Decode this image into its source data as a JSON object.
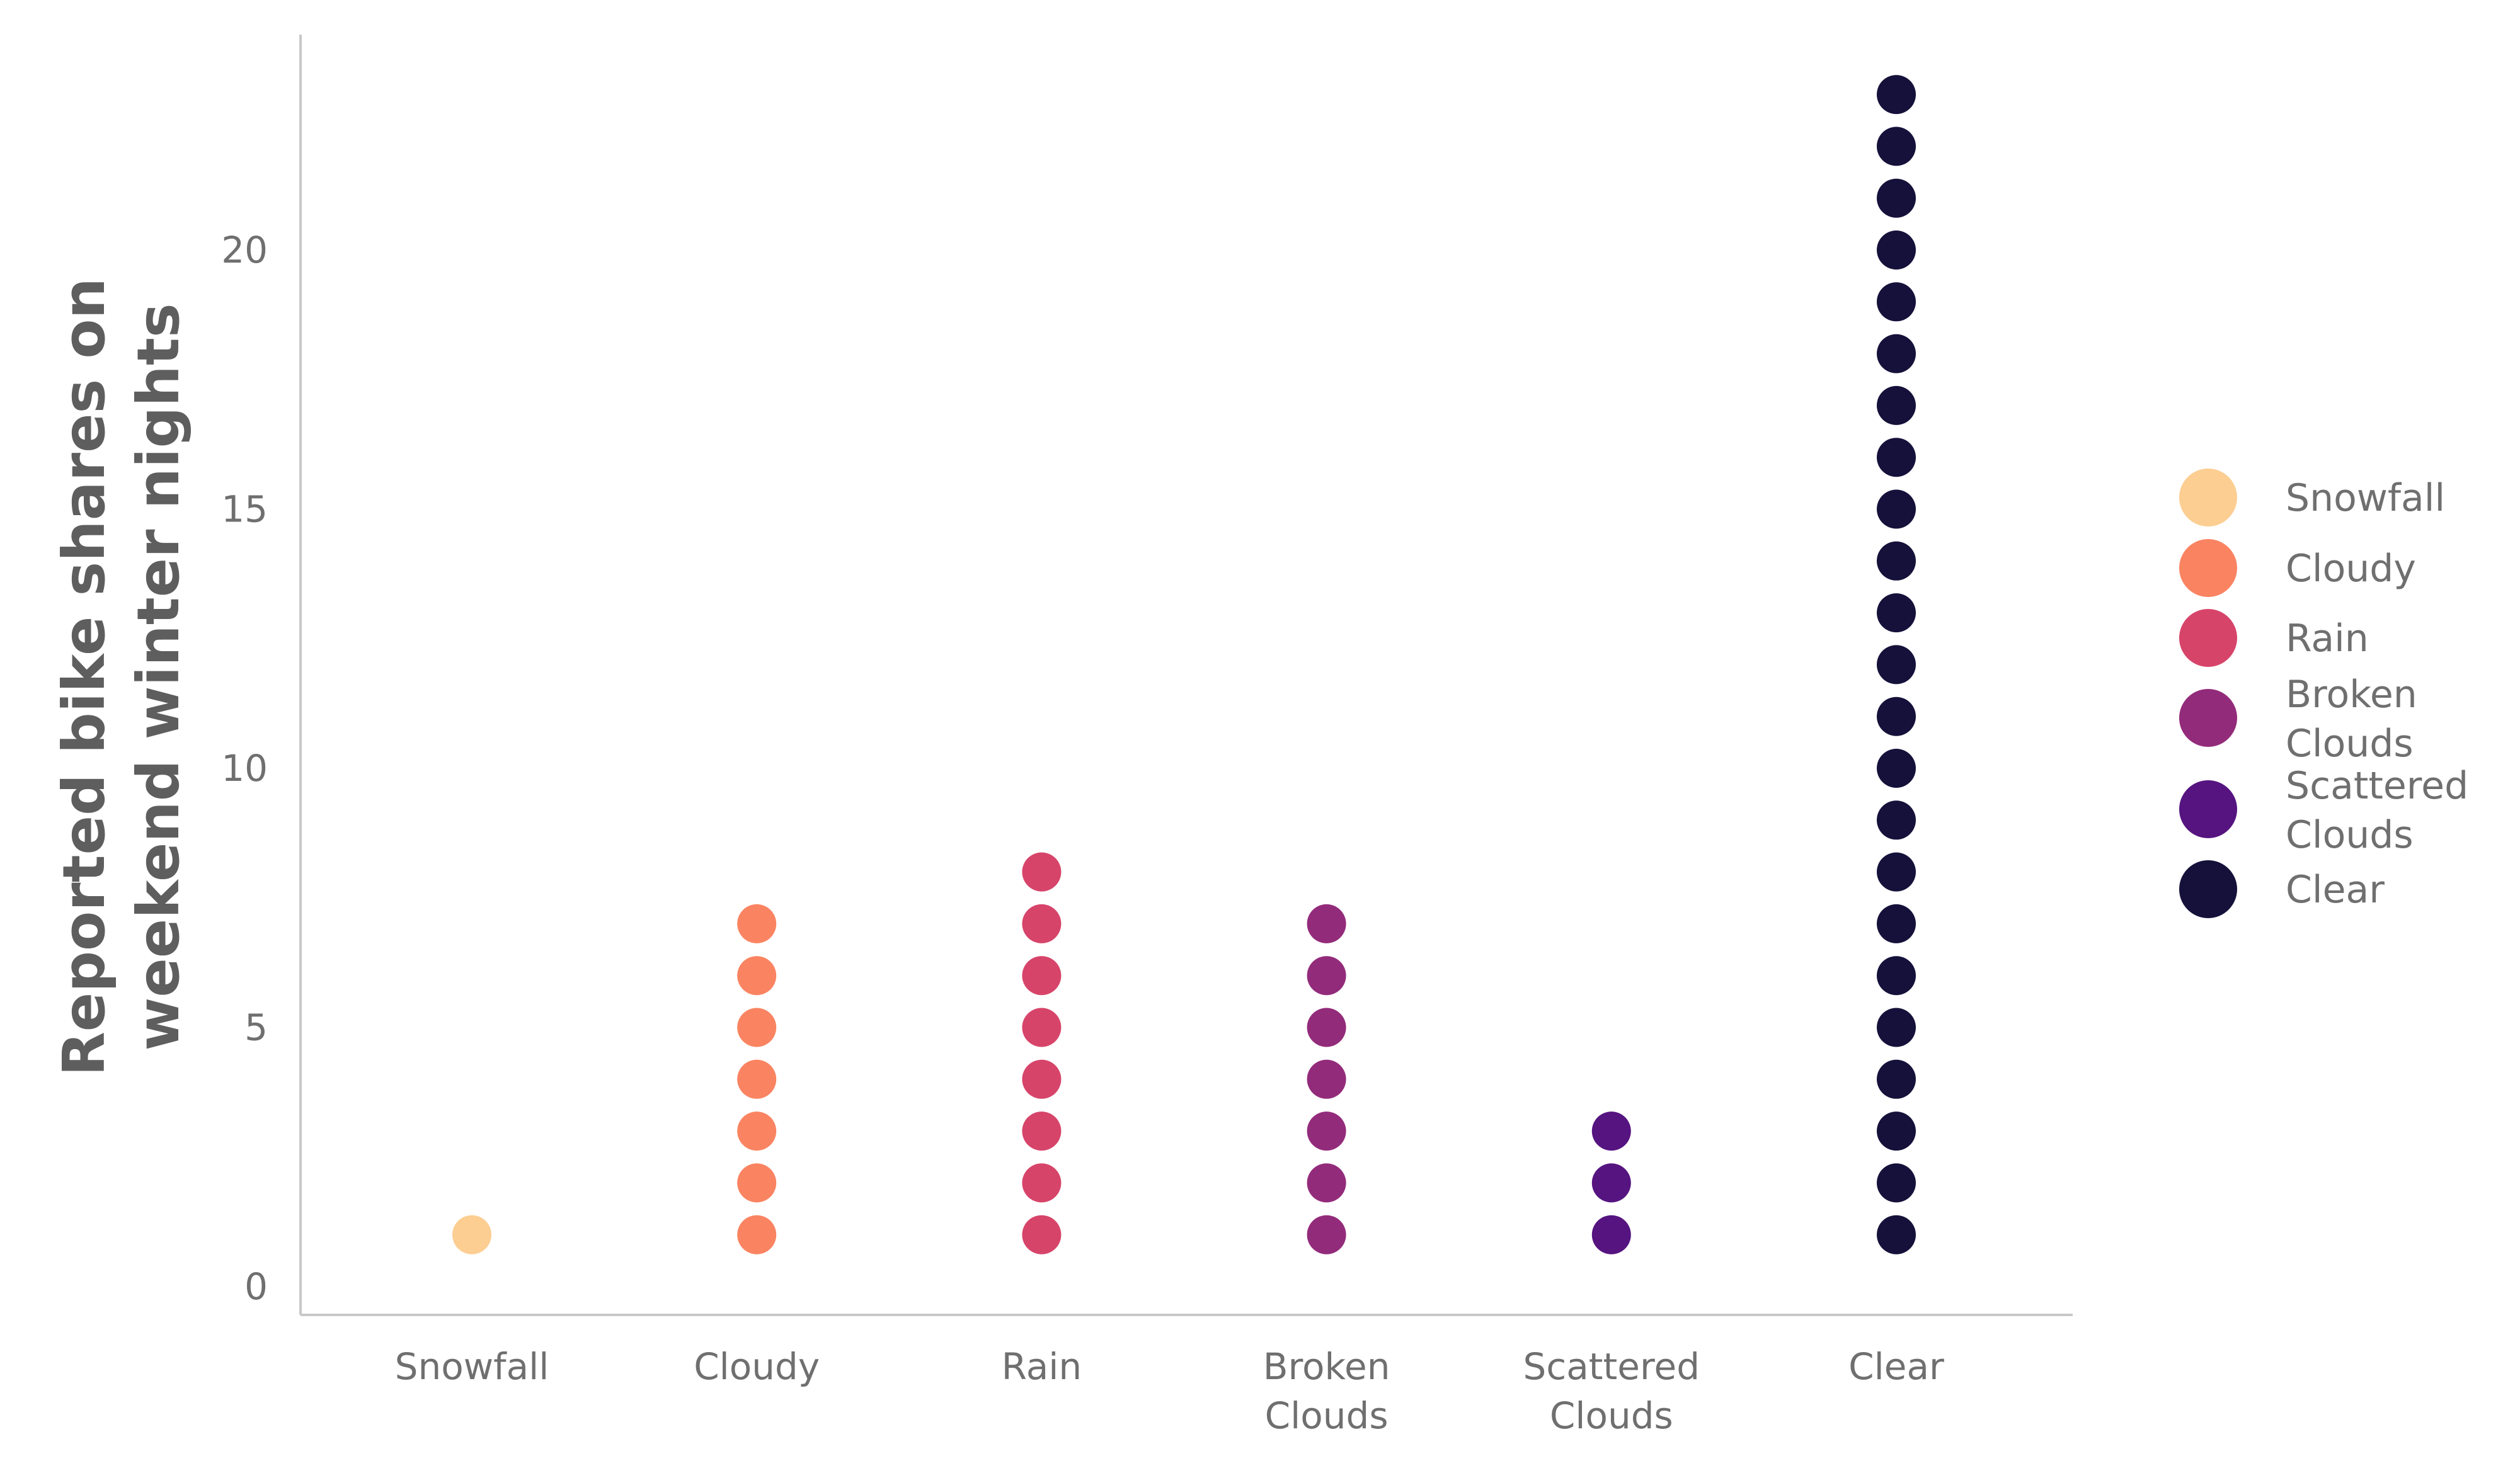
{
  "chart_data": {
    "type": "scatter",
    "subtype": "dot-stack",
    "title": "",
    "ylabel": "Reported bike shares on weekend winter nights",
    "xlabel": "",
    "categories": [
      "Snowfall",
      "Cloudy",
      "Rain",
      "Broken Clouds",
      "Scattered Clouds",
      "Clear"
    ],
    "counts": [
      1,
      7,
      8,
      7,
      3,
      23
    ],
    "y_ticks": [
      0,
      5,
      10,
      15,
      20
    ],
    "ylim": [
      0,
      24
    ],
    "grid": false,
    "legend_position": "right",
    "colors": {
      "Snowfall": "#fcce92",
      "Cloudy": "#fa8462",
      "Rain": "#d7446a",
      "Broken Clouds": "#932b7b",
      "Scattered Clouds": "#561480",
      "Clear": "#15113a"
    },
    "legend": [
      "Snowfall",
      "Cloudy",
      "Rain",
      "Broken Clouds",
      "Scattered Clouds",
      "Clear"
    ]
  }
}
